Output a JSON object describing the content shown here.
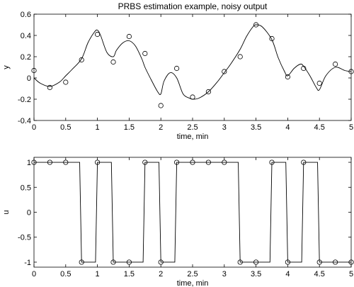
{
  "chart_data": [
    {
      "type": "line",
      "title": "PRBS estimation example, noisy output",
      "xlabel": "time, min",
      "ylabel": "y",
      "xlim": [
        0,
        5
      ],
      "ylim": [
        -0.4,
        0.6
      ],
      "xticks": [
        0,
        0.5,
        1,
        1.5,
        2,
        2.5,
        3,
        3.5,
        4,
        4.5,
        5
      ],
      "xtick_labels": [
        "0",
        "0.5",
        "1",
        "1.5",
        "2",
        "2.5",
        "3",
        "3.5",
        "4",
        "4.5",
        "5"
      ],
      "yticks": [
        -0.4,
        -0.2,
        0,
        0.2,
        0.4,
        0.6
      ],
      "ytick_labels": [
        "-0.4",
        "-0.2",
        "0",
        "0.2",
        "0.4",
        "0.6"
      ],
      "grid": false,
      "series": [
        {
          "style": "line",
          "x": [
            0,
            0.1,
            0.25,
            0.4,
            0.5,
            0.6,
            0.75,
            0.85,
            0.95,
            1.0,
            1.05,
            1.15,
            1.25,
            1.3,
            1.4,
            1.5,
            1.6,
            1.7,
            1.75,
            1.85,
            1.95,
            2.0,
            2.05,
            2.15,
            2.25,
            2.35,
            2.45,
            2.5,
            2.6,
            2.75,
            2.9,
            3.0,
            3.1,
            3.25,
            3.35,
            3.45,
            3.5,
            3.6,
            3.75,
            3.85,
            3.95,
            4.0,
            4.1,
            4.2,
            4.25,
            4.35,
            4.45,
            4.5,
            4.6,
            4.75,
            4.9,
            5.0
          ],
          "y": [
            0.0,
            -0.05,
            -0.08,
            -0.04,
            0.02,
            0.08,
            0.18,
            0.33,
            0.43,
            0.45,
            0.4,
            0.24,
            0.2,
            0.26,
            0.33,
            0.35,
            0.3,
            0.18,
            0.1,
            -0.02,
            -0.13,
            -0.15,
            -0.03,
            0.05,
            0.0,
            -0.15,
            -0.19,
            -0.2,
            -0.19,
            -0.13,
            -0.03,
            0.05,
            0.13,
            0.27,
            0.39,
            0.48,
            0.5,
            0.48,
            0.36,
            0.19,
            0.06,
            0.02,
            0.09,
            0.13,
            0.11,
            0.02,
            -0.09,
            -0.11,
            0.02,
            0.1,
            0.07,
            0.06
          ]
        },
        {
          "style": "markers",
          "marker": "circle",
          "x": [
            0,
            0.25,
            0.5,
            0.75,
            1.0,
            1.25,
            1.5,
            1.75,
            2.0,
            2.25,
            2.5,
            2.75,
            3.0,
            3.25,
            3.5,
            3.75,
            4.0,
            4.25,
            4.5,
            4.75,
            5.0
          ],
          "y": [
            0.07,
            -0.09,
            -0.04,
            0.17,
            0.41,
            0.15,
            0.39,
            0.23,
            -0.26,
            0.09,
            -0.18,
            -0.13,
            0.06,
            0.2,
            0.5,
            0.37,
            0.01,
            0.09,
            -0.05,
            0.13,
            0.06
          ]
        }
      ]
    },
    {
      "type": "line",
      "title": "",
      "xlabel": "time, min",
      "ylabel": "u",
      "xlim": [
        0,
        5
      ],
      "ylim": [
        -1.1,
        1.1
      ],
      "xticks": [
        0,
        0.5,
        1,
        1.5,
        2,
        2.5,
        3,
        3.5,
        4,
        4.5,
        5
      ],
      "xtick_labels": [
        "0",
        "0.5",
        "1",
        "1.5",
        "2",
        "2.5",
        "3",
        "3.5",
        "4",
        "4.5",
        "5"
      ],
      "yticks": [
        -1,
        -0.5,
        0,
        0.5,
        1
      ],
      "ytick_labels": [
        "-1",
        "-0.5",
        "0",
        "0.5",
        "1"
      ],
      "grid": false,
      "series": [
        {
          "style": "line",
          "x": [
            0,
            0.72,
            0.75,
            0.97,
            1.0,
            1.22,
            1.25,
            1.72,
            1.75,
            1.97,
            2.0,
            2.22,
            2.25,
            3.22,
            3.25,
            3.72,
            3.75,
            3.97,
            4.0,
            4.22,
            4.25,
            4.47,
            4.5,
            5.0
          ],
          "y": [
            1,
            1,
            -1,
            -1,
            1,
            1,
            -1,
            -1,
            1,
            1,
            -1,
            -1,
            1,
            1,
            -1,
            -1,
            1,
            1,
            -1,
            -1,
            1,
            1,
            -1,
            -1
          ]
        },
        {
          "style": "markers",
          "marker": "circle",
          "x": [
            0,
            0.25,
            0.5,
            0.75,
            1.0,
            1.25,
            1.5,
            1.75,
            2.0,
            2.25,
            2.5,
            2.75,
            3.0,
            3.25,
            3.5,
            3.75,
            4.0,
            4.25,
            4.5,
            4.75,
            5.0
          ],
          "y": [
            1,
            1,
            1,
            -1,
            1,
            -1,
            -1,
            1,
            -1,
            1,
            1,
            1,
            1,
            -1,
            -1,
            1,
            -1,
            1,
            -1,
            -1,
            -1
          ]
        }
      ]
    }
  ]
}
